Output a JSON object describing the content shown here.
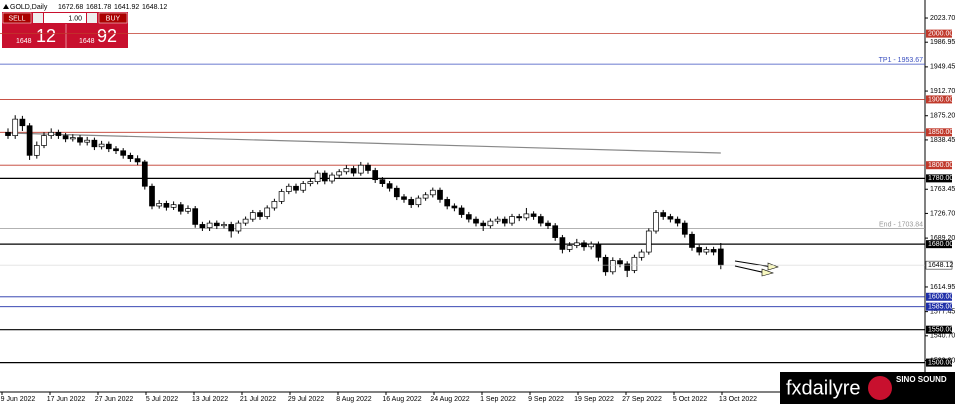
{
  "chart_data": {
    "type": "candlestick",
    "symbol": "GOLD,Daily",
    "ylim": [
      1455.3,
      2043.5
    ],
    "yticks": [
      {
        "value": 2023.7,
        "label": "2023.70"
      },
      {
        "value": 1986.95,
        "label": "1986.95"
      },
      {
        "value": 1949.45,
        "label": "1949.45"
      },
      {
        "value": 1912.7,
        "label": "1912.70"
      },
      {
        "value": 1875.2,
        "label": "1875.20"
      },
      {
        "value": 1838.45,
        "label": "1838.45"
      },
      {
        "value": 1763.45,
        "label": "1763.45"
      },
      {
        "value": 1726.7,
        "label": "1726.70"
      },
      {
        "value": 1689.2,
        "label": "1689.20"
      },
      {
        "value": 1614.95,
        "label": "1614.95"
      },
      {
        "value": 1577.45,
        "label": "1577.45"
      },
      {
        "value": 1540.7,
        "label": "1540.70"
      },
      {
        "value": 1503.2,
        "label": "1503.20"
      }
    ],
    "x_labels": [
      "9 Jun 2022",
      "17 Jun 2022",
      "27 Jun 2022",
      "5 Jul 2022",
      "13 Jul 2022",
      "21 Jul 2022",
      "29 Jul 2022",
      "8 Aug 2022",
      "16 Aug 2022",
      "24 Aug 2022",
      "1 Sep 2022",
      "9 Sep 2022",
      "19 Sep 2022",
      "27 Sep 2022",
      "5 Oct 2022",
      "13 Oct 2022"
    ],
    "bull_color": "#ffffff",
    "bear_color": "#000000",
    "candles": [
      [
        1850,
        1856,
        1840,
        1845
      ],
      [
        1845,
        1876,
        1840,
        1870
      ],
      [
        1870,
        1875,
        1852,
        1860
      ],
      [
        1860,
        1864,
        1808,
        1815
      ],
      [
        1815,
        1836,
        1810,
        1830
      ],
      [
        1830,
        1850,
        1826,
        1845
      ],
      [
        1845,
        1856,
        1840,
        1850
      ],
      [
        1850,
        1854,
        1840,
        1845
      ],
      [
        1845,
        1849,
        1835,
        1840
      ],
      [
        1840,
        1847,
        1836,
        1842
      ],
      [
        1842,
        1846,
        1830,
        1835
      ],
      [
        1835,
        1843,
        1830,
        1838
      ],
      [
        1838,
        1842,
        1823,
        1828
      ],
      [
        1828,
        1837,
        1824,
        1832
      ],
      [
        1832,
        1836,
        1820,
        1825
      ],
      [
        1825,
        1829,
        1817,
        1822
      ],
      [
        1822,
        1826,
        1810,
        1815
      ],
      [
        1815,
        1819,
        1805,
        1810
      ],
      [
        1810,
        1815,
        1800,
        1805
      ],
      [
        1805,
        1808,
        1763,
        1768
      ],
      [
        1768,
        1772,
        1733,
        1738
      ],
      [
        1738,
        1747,
        1734,
        1742
      ],
      [
        1742,
        1746,
        1731,
        1736
      ],
      [
        1736,
        1745,
        1732,
        1740
      ],
      [
        1740,
        1744,
        1725,
        1730
      ],
      [
        1730,
        1739,
        1726,
        1734
      ],
      [
        1734,
        1738,
        1705,
        1710
      ],
      [
        1710,
        1714,
        1700,
        1705
      ],
      [
        1705,
        1716,
        1700,
        1712
      ],
      [
        1712,
        1716,
        1703,
        1708
      ],
      [
        1708,
        1714,
        1704,
        1710
      ],
      [
        1710,
        1714,
        1690,
        1700
      ],
      [
        1700,
        1716,
        1696,
        1712
      ],
      [
        1712,
        1722,
        1708,
        1718
      ],
      [
        1718,
        1732,
        1714,
        1728
      ],
      [
        1728,
        1732,
        1717,
        1722
      ],
      [
        1722,
        1739,
        1718,
        1735
      ],
      [
        1735,
        1749,
        1731,
        1745
      ],
      [
        1745,
        1764,
        1741,
        1760
      ],
      [
        1760,
        1772,
        1756,
        1768
      ],
      [
        1768,
        1772,
        1757,
        1762
      ],
      [
        1762,
        1776,
        1758,
        1772
      ],
      [
        1772,
        1780,
        1768,
        1775
      ],
      [
        1775,
        1792,
        1771,
        1788
      ],
      [
        1788,
        1792,
        1771,
        1776
      ],
      [
        1776,
        1789,
        1772,
        1785
      ],
      [
        1785,
        1794,
        1781,
        1790
      ],
      [
        1790,
        1800,
        1786,
        1795
      ],
      [
        1795,
        1799,
        1783,
        1788
      ],
      [
        1788,
        1805,
        1784,
        1800
      ],
      [
        1800,
        1804,
        1787,
        1792
      ],
      [
        1792,
        1796,
        1773,
        1778
      ],
      [
        1778,
        1782,
        1767,
        1772
      ],
      [
        1772,
        1776,
        1760,
        1765
      ],
      [
        1765,
        1769,
        1747,
        1752
      ],
      [
        1752,
        1756,
        1743,
        1748
      ],
      [
        1748,
        1752,
        1735,
        1740
      ],
      [
        1740,
        1754,
        1736,
        1750
      ],
      [
        1750,
        1759,
        1746,
        1755
      ],
      [
        1755,
        1766,
        1751,
        1762
      ],
      [
        1762,
        1766,
        1743,
        1748
      ],
      [
        1748,
        1752,
        1733,
        1738
      ],
      [
        1738,
        1742,
        1730,
        1735
      ],
      [
        1735,
        1739,
        1720,
        1725
      ],
      [
        1725,
        1729,
        1713,
        1718
      ],
      [
        1718,
        1722,
        1707,
        1712
      ],
      [
        1712,
        1716,
        1700,
        1708
      ],
      [
        1708,
        1719,
        1704,
        1715
      ],
      [
        1715,
        1722,
        1711,
        1718
      ],
      [
        1718,
        1722,
        1707,
        1712
      ],
      [
        1712,
        1726,
        1708,
        1722
      ],
      [
        1722,
        1726,
        1715,
        1720
      ],
      [
        1720,
        1735,
        1716,
        1726
      ],
      [
        1726,
        1730,
        1717,
        1722
      ],
      [
        1722,
        1726,
        1707,
        1712
      ],
      [
        1712,
        1716,
        1703,
        1708
      ],
      [
        1708,
        1712,
        1685,
        1690
      ],
      [
        1690,
        1694,
        1666,
        1672
      ],
      [
        1672,
        1683,
        1668,
        1678
      ],
      [
        1678,
        1688,
        1674,
        1682
      ],
      [
        1682,
        1686,
        1670,
        1676
      ],
      [
        1676,
        1684,
        1672,
        1680
      ],
      [
        1680,
        1684,
        1654,
        1660
      ],
      [
        1660,
        1664,
        1632,
        1638
      ],
      [
        1638,
        1660,
        1634,
        1655
      ],
      [
        1655,
        1659,
        1645,
        1650
      ],
      [
        1650,
        1654,
        1630,
        1640
      ],
      [
        1640,
        1664,
        1636,
        1660
      ],
      [
        1660,
        1672,
        1655,
        1668
      ],
      [
        1668,
        1704,
        1664,
        1700
      ],
      [
        1700,
        1732,
        1696,
        1728
      ],
      [
        1728,
        1732,
        1717,
        1722
      ],
      [
        1722,
        1726,
        1713,
        1718
      ],
      [
        1718,
        1722,
        1707,
        1712
      ],
      [
        1712,
        1716,
        1690,
        1695
      ],
      [
        1695,
        1699,
        1670,
        1675
      ],
      [
        1675,
        1679,
        1663,
        1668
      ],
      [
        1668,
        1676,
        1664,
        1672
      ],
      [
        1672,
        1676,
        1663,
        1668
      ],
      [
        1672.68,
        1681.78,
        1641.92,
        1648.12
      ]
    ],
    "trendline": {
      "start": 1849,
      "end": 1818.5,
      "color": "#888888"
    },
    "levels": [
      {
        "value": 2000,
        "label": "2000.00",
        "color": "#c0392b",
        "box": true
      },
      {
        "value": 1953.67,
        "label": "TP1 - 1953.67",
        "color": "#3a4fbf",
        "box": false
      },
      {
        "value": 1900,
        "label": "1900.00",
        "color": "#c0392b",
        "box": true
      },
      {
        "value": 1850,
        "label": "1850.00",
        "color": "#c0392b",
        "box": true
      },
      {
        "value": 1800,
        "label": "1800.00",
        "color": "#c0392b",
        "box": true
      },
      {
        "value": 1780,
        "label": "1780.00",
        "color": "#000000",
        "box": true
      },
      {
        "value": 1703.84,
        "label": "End - 1703.84",
        "color": "#999999",
        "box": false
      },
      {
        "value": 1680,
        "label": "1680.00",
        "color": "#000000",
        "box": true
      },
      {
        "value": 1600,
        "label": "1600.00",
        "color": "#1f2fa8",
        "box": true
      },
      {
        "value": 1585,
        "label": "1585.00",
        "color": "#1f2fa8",
        "box": true
      },
      {
        "value": 1550,
        "label": "1550.00",
        "color": "#000000",
        "box": true
      },
      {
        "value": 1500,
        "label": "1500.00",
        "color": "#000000",
        "box": true
      }
    ]
  },
  "trade_panel": {
    "sell": "SELL",
    "buy": "BUY",
    "lot": "1.00",
    "bid_big": "1648",
    "bid_small": "12",
    "ask_big": "1648",
    "ask_small": "92"
  },
  "watermark": {
    "site": "fxdailyre",
    "brand": "SINO SOUND"
  }
}
